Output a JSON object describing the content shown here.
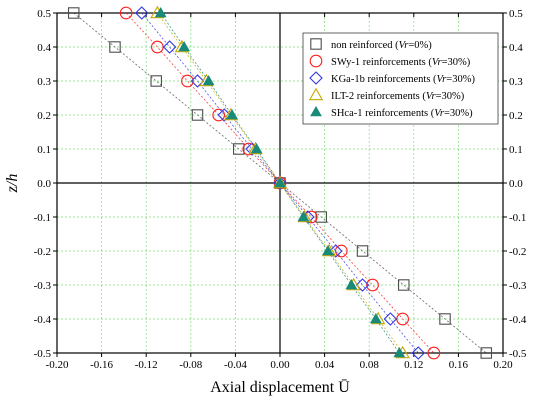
{
  "chart_data": {
    "type": "scatter",
    "title": "",
    "xlabel": "Axial displacement Ū",
    "ylabel": "z/h",
    "xlim": [
      -0.2,
      0.2
    ],
    "ylim": [
      -0.5,
      0.5
    ],
    "grid": true,
    "legend_position": "top-right",
    "x_ticks": [
      "-0.20",
      "-0.16",
      "-0.12",
      "-0.08",
      "-0.04",
      "0.00",
      "0.04",
      "0.08",
      "0.12",
      "0.16",
      "0.20"
    ],
    "y_ticks": [
      "0.5",
      "0.4",
      "0.3",
      "0.2",
      "0.1",
      "0.0",
      "-0.1",
      "-0.2",
      "-0.3",
      "-0.4",
      "-0.5"
    ],
    "series": [
      {
        "name": "non reinforced (Vr=0%)",
        "label_parts": [
          "non reinforced (",
          "Vr",
          "=0%)"
        ],
        "marker": "square",
        "color": "#4d4d4d",
        "points": [
          {
            "x": -0.185,
            "y": 0.5
          },
          {
            "x": -0.148,
            "y": 0.4
          },
          {
            "x": -0.111,
            "y": 0.3
          },
          {
            "x": -0.074,
            "y": 0.2
          },
          {
            "x": -0.037,
            "y": 0.1
          },
          {
            "x": 0.0,
            "y": 0.0
          },
          {
            "x": 0.037,
            "y": -0.1
          },
          {
            "x": 0.074,
            "y": -0.2
          },
          {
            "x": 0.111,
            "y": -0.3
          },
          {
            "x": 0.148,
            "y": -0.4
          },
          {
            "x": 0.185,
            "y": -0.5
          }
        ]
      },
      {
        "name": "SWy-1 reinforcements (Vr=30%)",
        "label_parts": [
          "SWy-1 reinforcements (",
          "Vr",
          "=30%)"
        ],
        "marker": "circle",
        "color": "#ff2020",
        "points": [
          {
            "x": -0.138,
            "y": 0.5
          },
          {
            "x": -0.11,
            "y": 0.4
          },
          {
            "x": -0.083,
            "y": 0.3
          },
          {
            "x": -0.055,
            "y": 0.2
          },
          {
            "x": -0.028,
            "y": 0.1
          },
          {
            "x": 0.0,
            "y": 0.0
          },
          {
            "x": 0.028,
            "y": -0.1
          },
          {
            "x": 0.055,
            "y": -0.2
          },
          {
            "x": 0.083,
            "y": -0.3
          },
          {
            "x": 0.11,
            "y": -0.4
          },
          {
            "x": 0.138,
            "y": -0.5
          }
        ]
      },
      {
        "name": "KGa-1b reinforcements (Vr=30%)",
        "label_parts": [
          "KGa-1b reinforcements (",
          "Vr",
          "=30%)"
        ],
        "marker": "diamond",
        "color": "#3535e6",
        "points": [
          {
            "x": -0.124,
            "y": 0.5
          },
          {
            "x": -0.099,
            "y": 0.4
          },
          {
            "x": -0.074,
            "y": 0.3
          },
          {
            "x": -0.05,
            "y": 0.2
          },
          {
            "x": -0.025,
            "y": 0.1
          },
          {
            "x": 0.0,
            "y": 0.0
          },
          {
            "x": 0.025,
            "y": -0.1
          },
          {
            "x": 0.05,
            "y": -0.2
          },
          {
            "x": 0.074,
            "y": -0.3
          },
          {
            "x": 0.099,
            "y": -0.4
          },
          {
            "x": 0.124,
            "y": -0.5
          }
        ]
      },
      {
        "name": "ILT-2 reinforcements (Vr=30%)",
        "label_parts": [
          "ILT-2 reinforcements (",
          "Vr",
          "=30%)"
        ],
        "marker": "triangle",
        "color": "#c8a800",
        "points": [
          {
            "x": -0.11,
            "y": 0.5
          },
          {
            "x": -0.088,
            "y": 0.4
          },
          {
            "x": -0.066,
            "y": 0.3
          },
          {
            "x": -0.044,
            "y": 0.2
          },
          {
            "x": -0.022,
            "y": 0.1
          },
          {
            "x": 0.0,
            "y": 0.0
          },
          {
            "x": 0.022,
            "y": -0.1
          },
          {
            "x": 0.044,
            "y": -0.2
          },
          {
            "x": 0.066,
            "y": -0.3
          },
          {
            "x": 0.088,
            "y": -0.4
          },
          {
            "x": 0.11,
            "y": -0.5
          }
        ]
      },
      {
        "name": "SHca-1 reinforcements (Vr=30%)",
        "label_parts": [
          "SHca-1 reinforcements (",
          "Vr",
          "=30%)"
        ],
        "marker": "triangle-filled",
        "color": "#1a8a78",
        "points": [
          {
            "x": -0.107,
            "y": 0.5
          },
          {
            "x": -0.086,
            "y": 0.4
          },
          {
            "x": -0.064,
            "y": 0.3
          },
          {
            "x": -0.043,
            "y": 0.2
          },
          {
            "x": -0.021,
            "y": 0.1
          },
          {
            "x": 0.0,
            "y": 0.0
          },
          {
            "x": 0.021,
            "y": -0.1
          },
          {
            "x": 0.043,
            "y": -0.2
          },
          {
            "x": 0.064,
            "y": -0.3
          },
          {
            "x": 0.086,
            "y": -0.4
          },
          {
            "x": 0.107,
            "y": -0.5
          }
        ]
      }
    ]
  }
}
